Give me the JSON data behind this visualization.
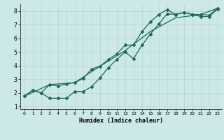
{
  "xlabel": "Humidex (Indice chaleur)",
  "bg_color": "#cce8e8",
  "line_color": "#1a6b5a",
  "grid_color_major": "#b8d4d4",
  "grid_color_minor": "#d4eaea",
  "xlim": [
    -0.5,
    23.5
  ],
  "ylim": [
    0.8,
    8.5
  ],
  "xticks": [
    0,
    1,
    2,
    3,
    4,
    5,
    6,
    7,
    8,
    9,
    10,
    11,
    12,
    13,
    14,
    15,
    16,
    17,
    18,
    19,
    20,
    21,
    22,
    23
  ],
  "yticks": [
    1,
    2,
    3,
    4,
    5,
    6,
    7,
    8
  ],
  "line1_x": [
    0,
    1,
    2,
    3,
    4,
    5,
    6,
    7,
    8,
    9,
    10,
    11,
    12,
    13,
    14,
    15,
    16,
    17,
    18,
    19,
    20,
    21,
    22,
    23
  ],
  "line1_y": [
    1.75,
    2.2,
    2.0,
    2.6,
    2.5,
    2.65,
    2.75,
    3.05,
    3.75,
    3.95,
    4.45,
    4.85,
    5.5,
    5.5,
    6.5,
    7.2,
    7.75,
    8.1,
    7.75,
    7.9,
    7.75,
    7.75,
    7.7,
    8.2
  ],
  "line2_x": [
    0,
    1,
    2,
    3,
    4,
    5,
    6,
    7,
    8,
    9,
    10,
    11,
    12,
    13,
    14,
    15,
    16,
    17,
    18,
    19,
    20,
    21,
    22,
    23
  ],
  "line2_y": [
    1.75,
    2.2,
    2.0,
    1.6,
    1.6,
    1.6,
    2.1,
    2.1,
    2.45,
    3.1,
    3.85,
    4.45,
    5.0,
    4.5,
    5.5,
    6.3,
    7.05,
    7.8,
    7.75,
    7.9,
    7.75,
    7.6,
    7.6,
    8.15
  ],
  "line3_x": [
    0,
    3,
    6,
    9,
    12,
    15,
    18,
    21,
    23
  ],
  "line3_y": [
    1.75,
    2.6,
    2.75,
    3.95,
    5.1,
    6.5,
    7.5,
    7.75,
    8.2
  ]
}
